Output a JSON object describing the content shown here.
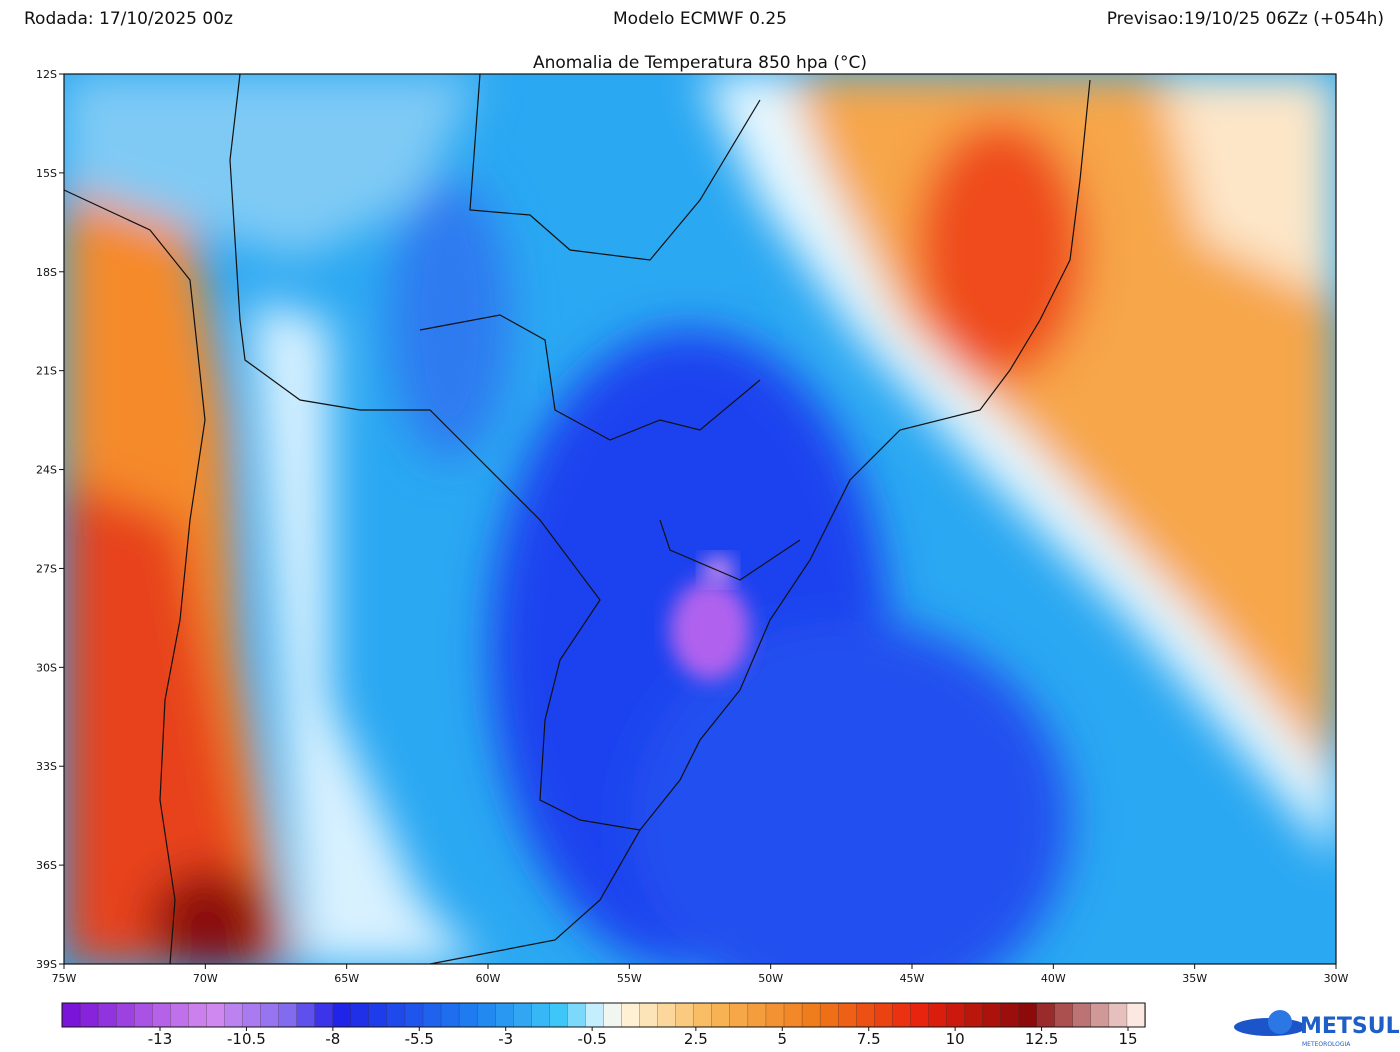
{
  "header": {
    "run": "Rodada: 17/10/2025 00z",
    "model": "Modelo ECMWF 0.25",
    "forecast": "Previsao:19/10/25 06Zz (+054h)",
    "title": "Anomalia de Temperatura 850 hpa (°C)"
  },
  "map": {
    "lat_labels": [
      "12S",
      "15S",
      "18S",
      "21S",
      "24S",
      "27S",
      "30S",
      "33S",
      "36S",
      "39S"
    ],
    "lon_labels": [
      "75W",
      "70W",
      "65W",
      "60W",
      "55W",
      "50W",
      "45W",
      "40W",
      "35W",
      "30W"
    ]
  },
  "colorbar": {
    "ticks": [
      -13,
      -10.5,
      -8,
      -5.5,
      -3,
      -0.5,
      2.5,
      5,
      7.5,
      10,
      12.5,
      15
    ]
  },
  "logo": {
    "name": "METSUL",
    "sub": "METEOROLOGIA"
  }
}
